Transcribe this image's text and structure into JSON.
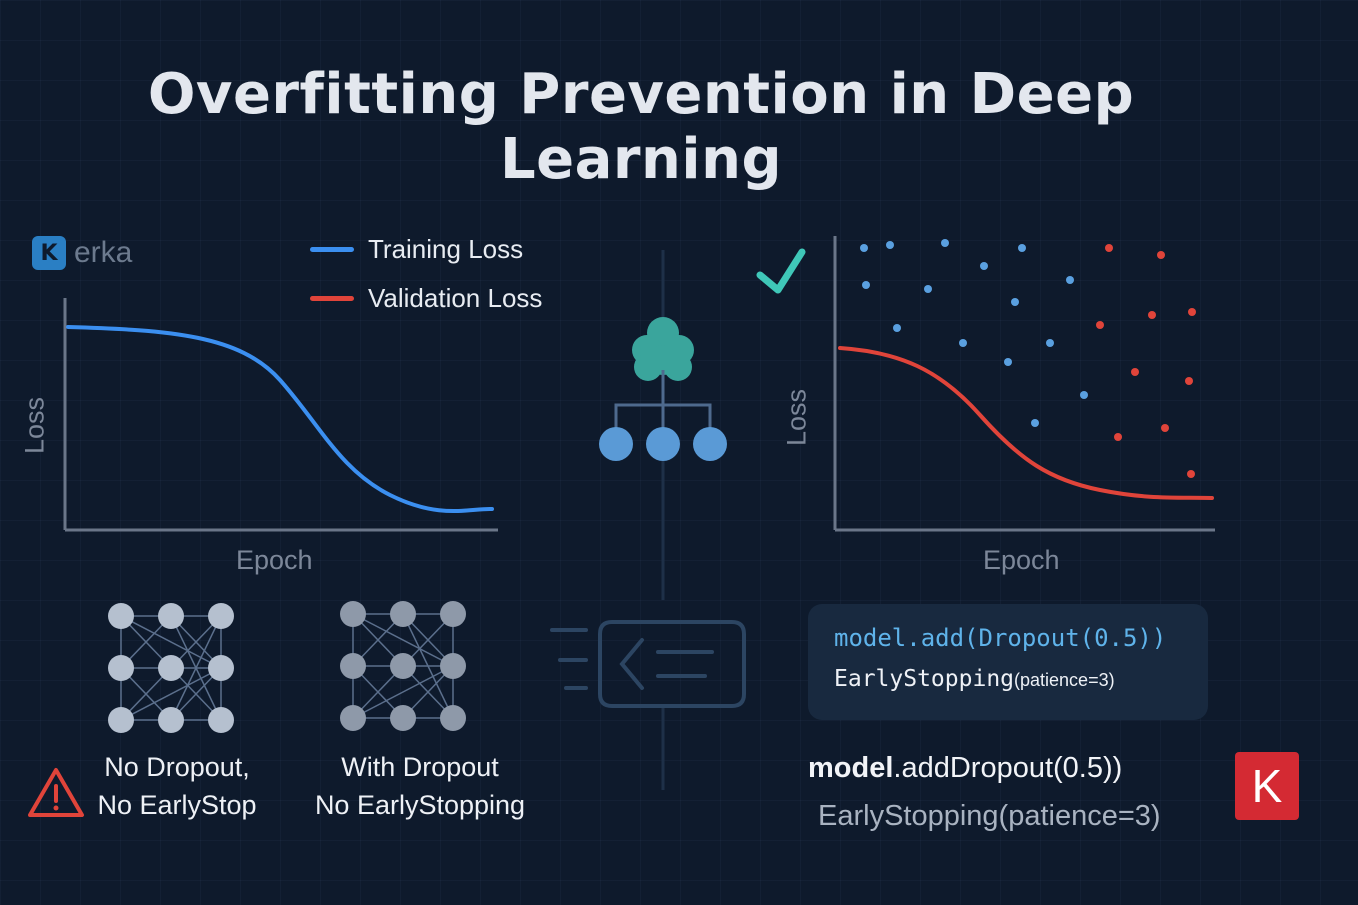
{
  "title": "Overfitting Prevention in Deep Learning",
  "brand": {
    "logo_letter": "K",
    "text": "erka"
  },
  "legend": [
    {
      "label": "Training Loss",
      "color": "#3b8ff0"
    },
    {
      "label": "Validation Loss",
      "color": "#e0443a"
    }
  ],
  "left_chart": {
    "ylabel": "Loss",
    "xlabel": "Epoch",
    "series_color": "#3b8ff0"
  },
  "right_chart": {
    "ylabel": "Loss",
    "xlabel": "Epoch",
    "series_color": "#e0443a",
    "check_color": "#3fc7b8"
  },
  "networks": [
    {
      "caption_line1": "No Dropout,",
      "caption_line2": "No EarlyStop",
      "warning": true
    },
    {
      "caption_line1": "With Dropout",
      "caption_line2": "No EarlyStopping"
    }
  ],
  "code_box": {
    "line1": "model.add(Dropout(0.5))",
    "line2_main": "EarlyStopping",
    "line2_args": "(patience=3)"
  },
  "code_plain": {
    "line1_bold": "model",
    "line1_rest": ".addDropout(0.5))",
    "line2": "EarlyStopping(patience=3)"
  },
  "badge": {
    "letter": "K",
    "color": "#d42a33"
  },
  "colors": {
    "background": "#0e1a2c",
    "training": "#3b8ff0",
    "validation": "#e0443a",
    "accent_teal": "#3fc7b8",
    "node_blue": "#5a9ad6"
  }
}
